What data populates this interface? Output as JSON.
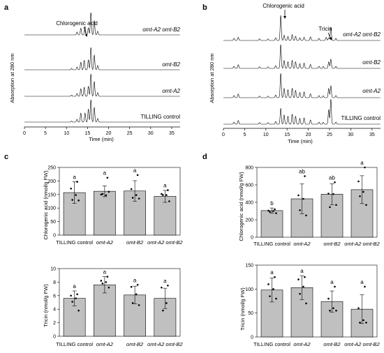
{
  "chart_data": [
    {
      "panel": "a",
      "type": "line",
      "xlabel": "Time (min)",
      "ylabel": "Absorption at 280 nm",
      "xlim": [
        0,
        37
      ],
      "xticks": [
        0,
        5,
        10,
        15,
        20,
        25,
        30,
        35
      ],
      "annotations": [
        "Chlorogenic acid"
      ],
      "series": [
        {
          "name": "omt-A2 omt-B2",
          "peaks": [
            [
              12.5,
              0.12
            ],
            [
              13.4,
              0.28
            ],
            [
              14.4,
              0.35
            ],
            [
              15.2,
              0.3
            ],
            [
              15.8,
              0.95
            ],
            [
              16.6,
              0.6
            ],
            [
              17.4,
              0.15
            ]
          ]
        },
        {
          "name": "omt-B2",
          "peaks": [
            [
              11.2,
              0.06
            ],
            [
              12.5,
              0.12
            ],
            [
              13.4,
              0.32
            ],
            [
              14.2,
              0.4
            ],
            [
              15.2,
              0.42
            ],
            [
              15.8,
              0.95
            ],
            [
              16.6,
              0.62
            ],
            [
              17.4,
              0.18
            ]
          ]
        },
        {
          "name": "omt-A2",
          "peaks": [
            [
              11.2,
              0.05
            ],
            [
              12.5,
              0.12
            ],
            [
              13.4,
              0.32
            ],
            [
              14.2,
              0.38
            ],
            [
              15.2,
              0.42
            ],
            [
              15.8,
              0.95
            ],
            [
              16.6,
              0.62
            ],
            [
              17.4,
              0.15
            ]
          ]
        },
        {
          "name": "TILLING control",
          "peaks": [
            [
              11.2,
              0.04
            ],
            [
              12.5,
              0.12
            ],
            [
              13.4,
              0.38
            ],
            [
              14.4,
              0.38
            ],
            [
              15.2,
              0.55
            ],
            [
              15.8,
              0.95
            ],
            [
              16.6,
              0.62
            ],
            [
              17.4,
              0.15
            ]
          ]
        }
      ]
    },
    {
      "panel": "b",
      "type": "line",
      "xlabel": "Time (min)",
      "ylabel": "Absorption at 280 nm",
      "xlim": [
        0,
        37
      ],
      "xticks": [
        0,
        5,
        10,
        15,
        20,
        25,
        30,
        35
      ],
      "annotations": [
        "Chlorogenic acid",
        "Tricin"
      ],
      "series": [
        {
          "name": "omt-A2 omt-B2",
          "peaks": [
            [
              2.5,
              0.08
            ],
            [
              3.5,
              0.12
            ],
            [
              8.5,
              0.06
            ],
            [
              10.5,
              0.06
            ],
            [
              12.3,
              0.1
            ],
            [
              13.5,
              0.95
            ],
            [
              14.3,
              0.2
            ],
            [
              15.2,
              0.15
            ],
            [
              16.2,
              0.22
            ],
            [
              17.0,
              0.16
            ],
            [
              18.0,
              0.1
            ],
            [
              19.0,
              0.12
            ],
            [
              20.5,
              0.14
            ],
            [
              22.5,
              0.08
            ],
            [
              24.2,
              0.12
            ],
            [
              24.8,
              0.1
            ],
            [
              25.3,
              0.5
            ],
            [
              26.5,
              0.08
            ]
          ]
        },
        {
          "name": "omt-B2",
          "peaks": [
            [
              2.5,
              0.08
            ],
            [
              3.5,
              0.14
            ],
            [
              8.5,
              0.06
            ],
            [
              10.5,
              0.06
            ],
            [
              12.3,
              0.1
            ],
            [
              13.5,
              0.9
            ],
            [
              14.3,
              0.3
            ],
            [
              15.2,
              0.25
            ],
            [
              16.2,
              0.3
            ],
            [
              17.0,
              0.25
            ],
            [
              18.0,
              0.18
            ],
            [
              19.0,
              0.2
            ],
            [
              20.5,
              0.15
            ],
            [
              22.5,
              0.08
            ],
            [
              23.5,
              0.07
            ],
            [
              24.8,
              0.25
            ],
            [
              25.3,
              0.35
            ],
            [
              26.5,
              0.08
            ]
          ]
        },
        {
          "name": "omt-A2",
          "peaks": [
            [
              2.5,
              0.08
            ],
            [
              3.5,
              0.14
            ],
            [
              8.5,
              0.06
            ],
            [
              10.5,
              0.06
            ],
            [
              12.3,
              0.1
            ],
            [
              13.5,
              0.92
            ],
            [
              14.3,
              0.35
            ],
            [
              15.2,
              0.3
            ],
            [
              16.2,
              0.35
            ],
            [
              17.0,
              0.28
            ],
            [
              18.0,
              0.2
            ],
            [
              19.0,
              0.22
            ],
            [
              20.5,
              0.15
            ],
            [
              22.5,
              0.08
            ],
            [
              23.5,
              0.07
            ],
            [
              24.8,
              0.35
            ],
            [
              25.3,
              0.45
            ],
            [
              26.5,
              0.08
            ]
          ]
        },
        {
          "name": "TILLING control",
          "peaks": [
            [
              2.5,
              0.08
            ],
            [
              3.5,
              0.14
            ],
            [
              8.5,
              0.06
            ],
            [
              10.5,
              0.06
            ],
            [
              12.3,
              0.1
            ],
            [
              13.5,
              0.6
            ],
            [
              14.3,
              0.35
            ],
            [
              15.2,
              0.3
            ],
            [
              16.2,
              0.38
            ],
            [
              17.0,
              0.3
            ],
            [
              18.0,
              0.22
            ],
            [
              19.0,
              0.24
            ],
            [
              20.5,
              0.16
            ],
            [
              22.5,
              0.08
            ],
            [
              23.5,
              0.07
            ],
            [
              24.8,
              0.55
            ],
            [
              25.3,
              0.95
            ],
            [
              26.5,
              0.08
            ]
          ]
        }
      ]
    },
    {
      "panel": "c",
      "charts": [
        {
          "type": "bar",
          "ylabel": "Chlorogenic acid (nmol/g FW)",
          "ylim": [
            0,
            250
          ],
          "yticks": [
            0,
            50,
            100,
            150,
            200,
            250
          ],
          "categories": [
            "TILLING control",
            "omt-A2",
            "omt-B2",
            "omt-A2 omt-B2"
          ],
          "values": [
            157,
            162,
            163,
            143
          ],
          "errors": [
            40,
            20,
            38,
            22
          ],
          "significance": [
            "a",
            "a",
            "a",
            "a"
          ],
          "points": [
            [
              197,
              172,
              148,
              130,
              128
            ],
            [
              212,
              150,
              147,
              152,
              160
            ],
            [
              222,
              170,
              148,
              138,
              135
            ],
            [
              166,
              152,
              148,
              148,
              125
            ]
          ]
        },
        {
          "type": "bar",
          "ylabel": "Tricin (nmol/g FW)",
          "ylim": [
            0,
            10
          ],
          "yticks": [
            0,
            2,
            4,
            6,
            8,
            10
          ],
          "categories": [
            "TILLING control",
            "omt-A2",
            "omt-B2",
            "omt-A2 omt-B2"
          ],
          "values": [
            5.6,
            7.6,
            6.1,
            5.6
          ],
          "errors": [
            1.1,
            1.2,
            1.3,
            1.5
          ],
          "significance": [
            "a",
            "a",
            "a",
            "a"
          ],
          "points": [
            [
              6.2,
              6.0,
              5.6,
              5.1,
              3.8
            ],
            [
              8.8,
              8.2,
              8.0,
              7.8,
              7.2
            ],
            [
              7.6,
              7.3,
              6.2,
              4.9,
              4.6
            ],
            [
              7.5,
              7.2,
              4.9,
              3.8
            ]
          ]
        }
      ]
    },
    {
      "panel": "d",
      "charts": [
        {
          "type": "bar",
          "ylabel": "Chlorogenic acid (nmol/g FW)",
          "ylim": [
            0,
            800
          ],
          "yticks": [
            0,
            200,
            400,
            600,
            800
          ],
          "categories": [
            "TILLING control",
            "omt-A2",
            "omt-B2",
            "omt-A2 omt-B2"
          ],
          "values": [
            305,
            440,
            493,
            545
          ],
          "errors": [
            30,
            170,
            120,
            160
          ],
          "significance": [
            "b",
            "ab",
            "ab",
            "a"
          ],
          "points": [
            [
              320,
              305,
              300,
              290,
              275
            ],
            [
              700,
              480,
              440,
              310,
              250
            ],
            [
              630,
              500,
              495,
              345,
              370
            ],
            [
              800,
              640,
              520,
              470,
              370
            ]
          ]
        },
        {
          "type": "bar",
          "ylabel": "Tricin (nmol/g FW)",
          "ylim": [
            0,
            150
          ],
          "yticks": [
            0,
            50,
            100,
            150
          ],
          "categories": [
            "TILLING control",
            "omt-A2",
            "omt-B2",
            "omt-A2 omt-B2"
          ],
          "values": [
            98,
            103,
            74,
            58
          ],
          "errors": [
            25,
            25,
            22,
            30
          ],
          "significance": [
            "a",
            "a",
            "a",
            "a"
          ],
          "points": [
            [
              125,
              110,
              100,
              85,
              80
            ],
            [
              125,
              120,
              105,
              90,
              70
            ],
            [
              105,
              80,
              60,
              55,
              55
            ],
            [
              105,
              60,
              35,
              30,
              30
            ]
          ]
        }
      ]
    }
  ]
}
